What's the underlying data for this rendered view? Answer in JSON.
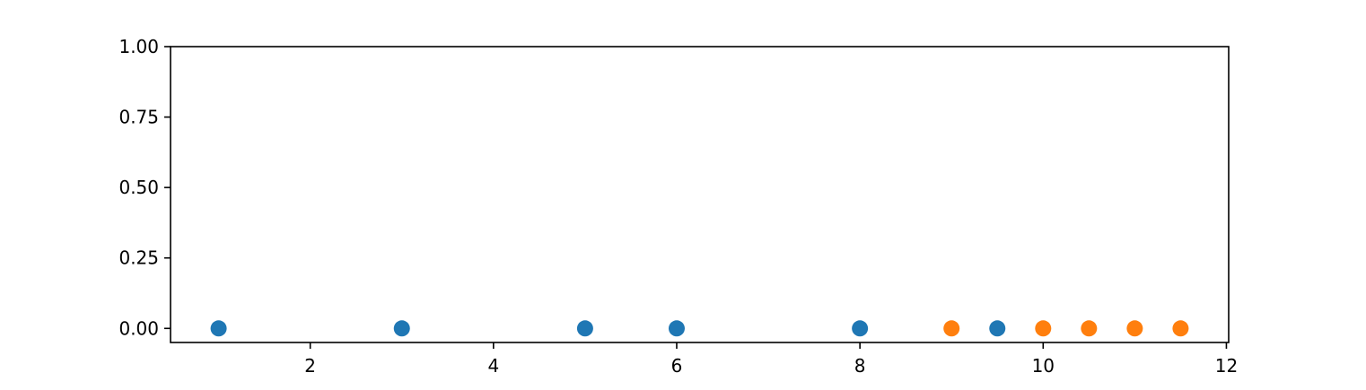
{
  "chart_data": {
    "type": "scatter",
    "title": "",
    "xlabel": "",
    "ylabel": "",
    "xlim": [
      0.475,
      12.025
    ],
    "ylim": [
      -0.05,
      1.0
    ],
    "grid": false,
    "x_ticks": [
      2,
      4,
      6,
      8,
      10,
      12
    ],
    "x_tick_labels": [
      "2",
      "4",
      "6",
      "8",
      "10",
      "12"
    ],
    "y_ticks": [
      0.0,
      0.25,
      0.5,
      0.75,
      1.0
    ],
    "y_tick_labels": [
      "0.00",
      "0.25",
      "0.50",
      "0.75",
      "1.00"
    ],
    "series": [
      {
        "color": "#1f77b4",
        "x": [
          1,
          3,
          5,
          6,
          8,
          9.5
        ],
        "y": [
          0,
          0,
          0,
          0,
          0,
          0
        ]
      },
      {
        "color": "#ff7f0e",
        "x": [
          9,
          10,
          10.5,
          11,
          11.5
        ],
        "y": [
          0,
          0,
          0,
          0,
          0
        ]
      }
    ]
  }
}
